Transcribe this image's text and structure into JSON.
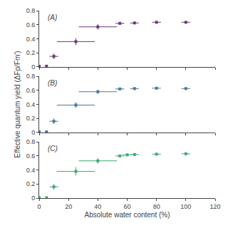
{
  "chart_data": [
    {
      "type": "scatter",
      "annotations": [
        "(A)"
      ],
      "series": [
        {
          "color": "#6B3A7D",
          "marker": "square",
          "x": [
            0,
            5,
            10,
            25,
            40,
            55,
            65,
            80,
            100
          ],
          "values": [
            0.01,
            0.01,
            0.15,
            0.36,
            0.57,
            0.62,
            0.625,
            0.635,
            0.635
          ],
          "x_err": [
            0,
            0,
            3,
            13,
            13,
            3,
            3,
            3,
            3
          ],
          "y_err": [
            0.005,
            0.005,
            0.04,
            0.05,
            0.04,
            0.015,
            0.015,
            0.015,
            0.015
          ]
        }
      ],
      "xlim": [
        0,
        120
      ],
      "xticks": [
        0,
        20,
        40,
        60,
        80,
        100,
        120
      ],
      "ylim": [
        0,
        0.8
      ],
      "yticks": [
        0,
        0.2,
        0.4,
        0.6,
        0.8
      ],
      "grid": false,
      "tick_labels": "y"
    },
    {
      "type": "scatter",
      "annotations": [
        "(B)"
      ],
      "ylabel": "Effective quantum yield (ΔFp/Fm′)",
      "series": [
        {
          "color": "#4A7A9B",
          "marker": "square",
          "x": [
            0,
            5,
            10,
            25,
            40,
            55,
            65,
            80,
            100
          ],
          "values": [
            0.01,
            0.01,
            0.16,
            0.39,
            0.58,
            0.62,
            0.625,
            0.63,
            0.625
          ],
          "x_err": [
            0,
            0,
            3,
            13,
            13,
            3,
            3,
            3,
            3
          ],
          "y_err": [
            0.005,
            0.005,
            0.04,
            0.04,
            0.03,
            0.015,
            0.015,
            0.015,
            0.015
          ]
        }
      ],
      "xlim": [
        0,
        120
      ],
      "xticks": [
        0,
        20,
        40,
        60,
        80,
        100,
        120
      ],
      "ylim": [
        0,
        0.8
      ],
      "yticks": [
        0,
        0.2,
        0.4,
        0.6,
        0.8
      ],
      "grid": false,
      "tick_labels": "y"
    },
    {
      "type": "scatter",
      "annotations": [
        "(C)"
      ],
      "xlabel": "Absolute water content (%)",
      "series": [
        {
          "color": "#3DAA72",
          "marker": "square",
          "x": [
            0,
            5,
            10,
            25,
            40,
            55,
            60,
            65,
            80,
            100
          ],
          "values": [
            0.005,
            0.005,
            0.16,
            0.38,
            0.53,
            0.6,
            0.615,
            0.62,
            0.625,
            0.63
          ],
          "x_err": [
            0,
            0,
            3,
            13,
            13,
            3,
            3,
            3,
            3,
            3
          ],
          "y_err": [
            0.003,
            0.003,
            0.04,
            0.06,
            0.04,
            0.015,
            0.015,
            0.015,
            0.015,
            0.015
          ]
        }
      ],
      "xlim": [
        0,
        120
      ],
      "xticks": [
        0,
        20,
        40,
        60,
        80,
        100,
        120
      ],
      "ylim": [
        0,
        0.8
      ],
      "yticks": [
        0,
        0.2,
        0.4,
        0.6,
        0.8
      ],
      "grid": false
    }
  ]
}
